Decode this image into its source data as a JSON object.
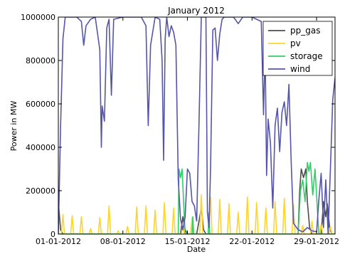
{
  "chart_data": {
    "type": "line",
    "title": "January 2012",
    "xlabel": "Date",
    "ylabel": "Power in MW",
    "x_range": [
      "2012-01-01",
      "2012-01-31"
    ],
    "ylim": [
      0,
      1000000
    ],
    "x_ticks": [
      "01-01-2012",
      "08-01-2012",
      "15-01-2012",
      "22-01-2012",
      "29-01-2012"
    ],
    "y_ticks": [
      "0",
      "200000",
      "400000",
      "600000",
      "800000",
      "1000000"
    ],
    "grid": false,
    "legend_position": "top-right",
    "series": [
      {
        "name": "pp_gas",
        "color": "#4d4d4d",
        "points": [
          [
            "2012-01-01T00",
            150000
          ],
          [
            "2012-01-01T06",
            20000
          ],
          [
            "2012-01-01T12",
            0
          ],
          [
            "2012-01-14T06",
            0
          ],
          [
            "2012-01-14T12",
            80000
          ],
          [
            "2012-01-14T18",
            20000
          ],
          [
            "2012-01-15T00",
            0
          ],
          [
            "2012-01-16T00",
            0
          ],
          [
            "2012-01-16T12",
            120000
          ],
          [
            "2012-01-16T18",
            20000
          ],
          [
            "2012-01-17T00",
            0
          ],
          [
            "2012-01-27T00",
            0
          ],
          [
            "2012-01-27T04",
            200000
          ],
          [
            "2012-01-27T08",
            300000
          ],
          [
            "2012-01-27T14",
            260000
          ],
          [
            "2012-01-27T20",
            300000
          ],
          [
            "2012-01-28T00",
            150000
          ],
          [
            "2012-01-28T06",
            30000
          ],
          [
            "2012-01-28T12",
            0
          ],
          [
            "2012-01-29T12",
            0
          ],
          [
            "2012-01-29T18",
            150000
          ],
          [
            "2012-01-30T00",
            80000
          ],
          [
            "2012-01-30T04",
            140000
          ],
          [
            "2012-01-30T10",
            30000
          ],
          [
            "2012-01-30T16",
            0
          ],
          [
            "2012-01-31T00",
            0
          ]
        ]
      },
      {
        "name": "pv",
        "color": "#ffd42a",
        "points": [
          [
            "2012-01-01T00",
            0
          ],
          [
            "2012-01-01T08",
            0
          ],
          [
            "2012-01-01T12",
            90000
          ],
          [
            "2012-01-01T16",
            0
          ],
          [
            "2012-01-02T08",
            0
          ],
          [
            "2012-01-02T12",
            85000
          ],
          [
            "2012-01-02T16",
            0
          ],
          [
            "2012-01-03T08",
            0
          ],
          [
            "2012-01-03T12",
            80000
          ],
          [
            "2012-01-03T16",
            0
          ],
          [
            "2012-01-04T08",
            0
          ],
          [
            "2012-01-04T12",
            25000
          ],
          [
            "2012-01-04T16",
            0
          ],
          [
            "2012-01-05T08",
            0
          ],
          [
            "2012-01-05T12",
            75000
          ],
          [
            "2012-01-05T16",
            0
          ],
          [
            "2012-01-06T08",
            0
          ],
          [
            "2012-01-06T12",
            130000
          ],
          [
            "2012-01-06T16",
            0
          ],
          [
            "2012-01-07T08",
            0
          ],
          [
            "2012-01-07T12",
            15000
          ],
          [
            "2012-01-07T16",
            0
          ],
          [
            "2012-01-08T08",
            0
          ],
          [
            "2012-01-08T12",
            35000
          ],
          [
            "2012-01-08T16",
            0
          ],
          [
            "2012-01-09T08",
            0
          ],
          [
            "2012-01-09T12",
            125000
          ],
          [
            "2012-01-09T16",
            0
          ],
          [
            "2012-01-10T08",
            0
          ],
          [
            "2012-01-10T12",
            130000
          ],
          [
            "2012-01-10T16",
            0
          ],
          [
            "2012-01-11T08",
            0
          ],
          [
            "2012-01-11T12",
            110000
          ],
          [
            "2012-01-11T16",
            0
          ],
          [
            "2012-01-12T08",
            0
          ],
          [
            "2012-01-12T12",
            145000
          ],
          [
            "2012-01-12T16",
            0
          ],
          [
            "2012-01-13T08",
            0
          ],
          [
            "2012-01-13T12",
            120000
          ],
          [
            "2012-01-13T16",
            0
          ],
          [
            "2012-01-14T08",
            0
          ],
          [
            "2012-01-14T12",
            35000
          ],
          [
            "2012-01-14T16",
            0
          ],
          [
            "2012-01-15T08",
            0
          ],
          [
            "2012-01-15T12",
            75000
          ],
          [
            "2012-01-15T16",
            0
          ],
          [
            "2012-01-16T08",
            0
          ],
          [
            "2012-01-16T12",
            180000
          ],
          [
            "2012-01-16T16",
            0
          ],
          [
            "2012-01-17T08",
            0
          ],
          [
            "2012-01-17T12",
            170000
          ],
          [
            "2012-01-17T16",
            0
          ],
          [
            "2012-01-18T08",
            0
          ],
          [
            "2012-01-18T12",
            160000
          ],
          [
            "2012-01-18T16",
            0
          ],
          [
            "2012-01-19T08",
            0
          ],
          [
            "2012-01-19T12",
            140000
          ],
          [
            "2012-01-19T16",
            0
          ],
          [
            "2012-01-20T08",
            0
          ],
          [
            "2012-01-20T12",
            100000
          ],
          [
            "2012-01-20T16",
            0
          ],
          [
            "2012-01-21T08",
            0
          ],
          [
            "2012-01-21T12",
            170000
          ],
          [
            "2012-01-21T16",
            0
          ],
          [
            "2012-01-22T08",
            0
          ],
          [
            "2012-01-22T12",
            145000
          ],
          [
            "2012-01-22T16",
            0
          ],
          [
            "2012-01-23T08",
            0
          ],
          [
            "2012-01-23T12",
            120000
          ],
          [
            "2012-01-23T16",
            0
          ],
          [
            "2012-01-24T08",
            0
          ],
          [
            "2012-01-24T12",
            150000
          ],
          [
            "2012-01-24T16",
            0
          ],
          [
            "2012-01-25T08",
            0
          ],
          [
            "2012-01-25T12",
            165000
          ],
          [
            "2012-01-25T16",
            0
          ],
          [
            "2012-01-26T08",
            0
          ],
          [
            "2012-01-26T12",
            135000
          ],
          [
            "2012-01-26T16",
            0
          ],
          [
            "2012-01-27T08",
            0
          ],
          [
            "2012-01-27T12",
            40000
          ],
          [
            "2012-01-27T16",
            0
          ],
          [
            "2012-01-28T08",
            0
          ],
          [
            "2012-01-28T12",
            60000
          ],
          [
            "2012-01-28T16",
            0
          ],
          [
            "2012-01-29T08",
            0
          ],
          [
            "2012-01-29T12",
            45000
          ],
          [
            "2012-01-29T16",
            0
          ],
          [
            "2012-01-30T08",
            0
          ],
          [
            "2012-01-30T12",
            35000
          ],
          [
            "2012-01-30T16",
            0
          ],
          [
            "2012-01-31T00",
            0
          ]
        ]
      },
      {
        "name": "storage",
        "color": "#33cc66",
        "points": [
          [
            "2012-01-01T00",
            0
          ],
          [
            "2012-01-14T00",
            0
          ],
          [
            "2012-01-14T02",
            300000
          ],
          [
            "2012-01-14T06",
            260000
          ],
          [
            "2012-01-14T10",
            300000
          ],
          [
            "2012-01-14T14",
            150000
          ],
          [
            "2012-01-14T18",
            0
          ],
          [
            "2012-01-15T12",
            0
          ],
          [
            "2012-01-15T14",
            80000
          ],
          [
            "2012-01-15T16",
            0
          ],
          [
            "2012-01-17T06",
            0
          ],
          [
            "2012-01-17T08",
            100000
          ],
          [
            "2012-01-17T10",
            0
          ],
          [
            "2012-01-27T00",
            0
          ],
          [
            "2012-01-27T06",
            200000
          ],
          [
            "2012-01-27T12",
            250000
          ],
          [
            "2012-01-27T18",
            150000
          ],
          [
            "2012-01-28T00",
            330000
          ],
          [
            "2012-01-28T04",
            290000
          ],
          [
            "2012-01-28T08",
            330000
          ],
          [
            "2012-01-28T14",
            180000
          ],
          [
            "2012-01-28T20",
            300000
          ],
          [
            "2012-01-29T02",
            120000
          ],
          [
            "2012-01-29T06",
            0
          ],
          [
            "2012-01-31T00",
            0
          ]
        ]
      },
      {
        "name": "wind",
        "color": "#5555aa",
        "points": [
          [
            "2012-01-01T00",
            0
          ],
          [
            "2012-01-01T06",
            500000
          ],
          [
            "2012-01-01T12",
            900000
          ],
          [
            "2012-01-01T18",
            1000000
          ],
          [
            "2012-01-03T00",
            1000000
          ],
          [
            "2012-01-03T12",
            980000
          ],
          [
            "2012-01-03T18",
            870000
          ],
          [
            "2012-01-04T00",
            960000
          ],
          [
            "2012-01-04T12",
            990000
          ],
          [
            "2012-01-05T00",
            1000000
          ],
          [
            "2012-01-05T12",
            850000
          ],
          [
            "2012-01-05T16",
            400000
          ],
          [
            "2012-01-05T18",
            590000
          ],
          [
            "2012-01-06T00",
            520000
          ],
          [
            "2012-01-06T06",
            950000
          ],
          [
            "2012-01-06T12",
            990000
          ],
          [
            "2012-01-06T18",
            640000
          ],
          [
            "2012-01-07T00",
            990000
          ],
          [
            "2012-01-08T00",
            1000000
          ],
          [
            "2012-01-10T00",
            1000000
          ],
          [
            "2012-01-10T12",
            960000
          ],
          [
            "2012-01-10T18",
            500000
          ],
          [
            "2012-01-11T00",
            870000
          ],
          [
            "2012-01-11T12",
            1000000
          ],
          [
            "2012-01-12T00",
            990000
          ],
          [
            "2012-01-12T06",
            800000
          ],
          [
            "2012-01-12T10",
            340000
          ],
          [
            "2012-01-12T14",
            900000
          ],
          [
            "2012-01-12T18",
            1000000
          ],
          [
            "2012-01-13T00",
            910000
          ],
          [
            "2012-01-13T06",
            960000
          ],
          [
            "2012-01-13T12",
            930000
          ],
          [
            "2012-01-13T18",
            870000
          ],
          [
            "2012-01-14T00",
            250000
          ],
          [
            "2012-01-14T06",
            70000
          ],
          [
            "2012-01-14T12",
            20000
          ],
          [
            "2012-01-14T18",
            80000
          ],
          [
            "2012-01-15T00",
            300000
          ],
          [
            "2012-01-15T06",
            280000
          ],
          [
            "2012-01-15T12",
            150000
          ],
          [
            "2012-01-15T18",
            130000
          ],
          [
            "2012-01-16T00",
            60000
          ],
          [
            "2012-01-16T06",
            500000
          ],
          [
            "2012-01-16T12",
            1000000
          ],
          [
            "2012-01-17T00",
            1000000
          ],
          [
            "2012-01-17T04",
            100000
          ],
          [
            "2012-01-17T08",
            30000
          ],
          [
            "2012-01-17T12",
            300000
          ],
          [
            "2012-01-17T18",
            940000
          ],
          [
            "2012-01-18T00",
            950000
          ],
          [
            "2012-01-18T06",
            800000
          ],
          [
            "2012-01-18T12",
            920000
          ],
          [
            "2012-01-18T18",
            990000
          ],
          [
            "2012-01-19T00",
            1000000
          ],
          [
            "2012-01-20T00",
            1000000
          ],
          [
            "2012-01-20T12",
            970000
          ],
          [
            "2012-01-21T00",
            1000000
          ],
          [
            "2012-01-22T00",
            1000000
          ],
          [
            "2012-01-22T12",
            990000
          ],
          [
            "2012-01-23T00",
            980000
          ],
          [
            "2012-01-23T06",
            550000
          ],
          [
            "2012-01-23T10",
            870000
          ],
          [
            "2012-01-23T14",
            270000
          ],
          [
            "2012-01-23T18",
            530000
          ],
          [
            "2012-01-24T00",
            420000
          ],
          [
            "2012-01-24T06",
            120000
          ],
          [
            "2012-01-24T12",
            500000
          ],
          [
            "2012-01-24T18",
            580000
          ],
          [
            "2012-01-25T00",
            380000
          ],
          [
            "2012-01-25T06",
            560000
          ],
          [
            "2012-01-25T12",
            610000
          ],
          [
            "2012-01-25T18",
            500000
          ],
          [
            "2012-01-26T00",
            690000
          ],
          [
            "2012-01-26T06",
            330000
          ],
          [
            "2012-01-26T12",
            50000
          ],
          [
            "2012-01-27T00",
            20000
          ],
          [
            "2012-01-27T12",
            10000
          ],
          [
            "2012-01-28T00",
            30000
          ],
          [
            "2012-01-28T12",
            15000
          ],
          [
            "2012-01-29T00",
            10000
          ],
          [
            "2012-01-29T06",
            160000
          ],
          [
            "2012-01-29T12",
            280000
          ],
          [
            "2012-01-29T18",
            30000
          ],
          [
            "2012-01-30T00",
            250000
          ],
          [
            "2012-01-30T06",
            0
          ],
          [
            "2012-01-30T12",
            300000
          ],
          [
            "2012-01-30T18",
            620000
          ],
          [
            "2012-01-31T00",
            720000
          ]
        ]
      }
    ]
  }
}
